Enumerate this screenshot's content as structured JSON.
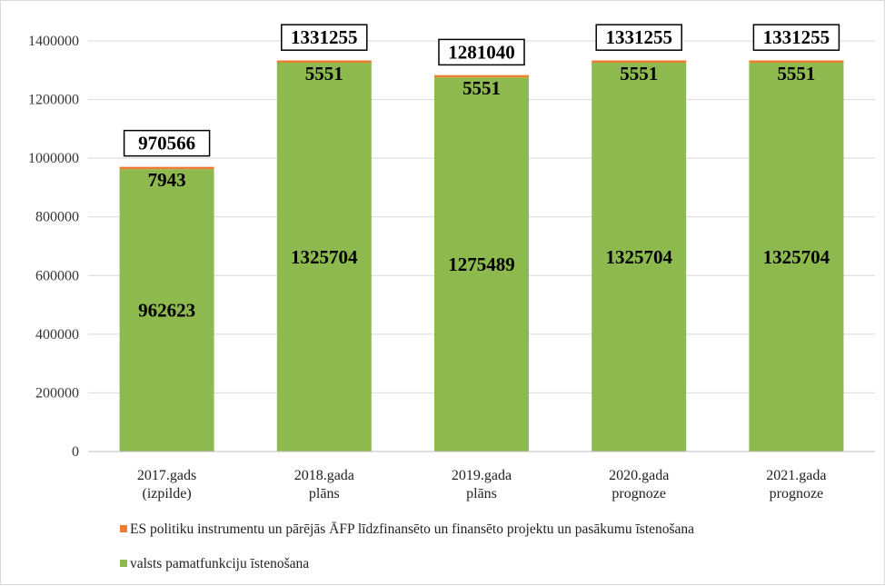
{
  "chart_data": {
    "type": "bar",
    "stacked": true,
    "categories": [
      [
        "2017.gads",
        "(izpilde)"
      ],
      [
        "2018.gada",
        "plāns"
      ],
      [
        "2019.gada",
        "plāns"
      ],
      [
        "2020.gada",
        "prognoze"
      ],
      [
        "2021.gada",
        "prognoze"
      ]
    ],
    "series": [
      {
        "name": "valsts pamatfunkciju īstenošana",
        "color": "#8db94f",
        "values": [
          962623,
          1325704,
          1275489,
          1325704,
          1325704
        ]
      },
      {
        "name": "ES politiku instrumentu un pārējās ĀFP līdzfinansēto un finansēto projektu un pasākumu īstenošana",
        "color": "#ed7d31",
        "values": [
          7943,
          5551,
          5551,
          5551,
          5551
        ]
      }
    ],
    "totals": [
      970566,
      1331255,
      1281040,
      1331255,
      1331255
    ],
    "ylim": [
      0,
      1400000
    ],
    "yticks": [
      0,
      200000,
      400000,
      600000,
      800000,
      1000000,
      1200000,
      1400000
    ],
    "grid": true,
    "legend_position": "bottom",
    "legend_order": [
      1,
      0
    ]
  }
}
